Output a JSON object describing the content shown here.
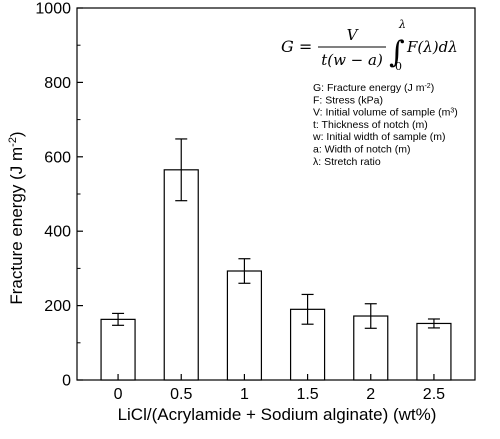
{
  "chart_data": {
    "type": "bar",
    "categories": [
      "0",
      "0.5",
      "1",
      "1.5",
      "2",
      "2.5"
    ],
    "values": [
      163,
      565,
      293,
      190,
      172,
      152
    ],
    "errors": [
      16,
      83,
      33,
      40,
      33,
      12
    ],
    "xlabel": "LiCl/(Acrylamide + Sodium alginate) (wt%)",
    "ylabel_main": "Fracture energy (J m",
    "ylabel_sup": "-2",
    "ylabel_end": ")",
    "ylim": [
      0,
      1000
    ],
    "yticks": [
      "0",
      "200",
      "400",
      "600",
      "800",
      "1000"
    ],
    "bar_fill": "#ffffff",
    "bar_stroke": "#000000",
    "grid": false,
    "annotation": {
      "equation": {
        "lhs": "G =",
        "num": "V",
        "den": "t(w − a)",
        "integral": "∫",
        "upper": "λ",
        "lower": "0",
        "integrand": "F(λ)dλ"
      },
      "legend": [
        {
          "main": "G: Fracture energy (J m",
          "sup": "-2",
          "end": ")"
        },
        {
          "main": "F: Stress (kPa)",
          "sup": "",
          "end": ""
        },
        {
          "main": "V: Initial volume of sample (m",
          "sup": "3",
          "end": ")"
        },
        {
          "main": "t: Thickness of notch (m)",
          "sup": "",
          "end": ""
        },
        {
          "main": "w: Initial width of sample (m)",
          "sup": "",
          "end": ""
        },
        {
          "main": "a: Width of notch (m)",
          "sup": "",
          "end": ""
        },
        {
          "main": "λ: Stretch ratio",
          "sup": "",
          "end": ""
        }
      ]
    }
  }
}
